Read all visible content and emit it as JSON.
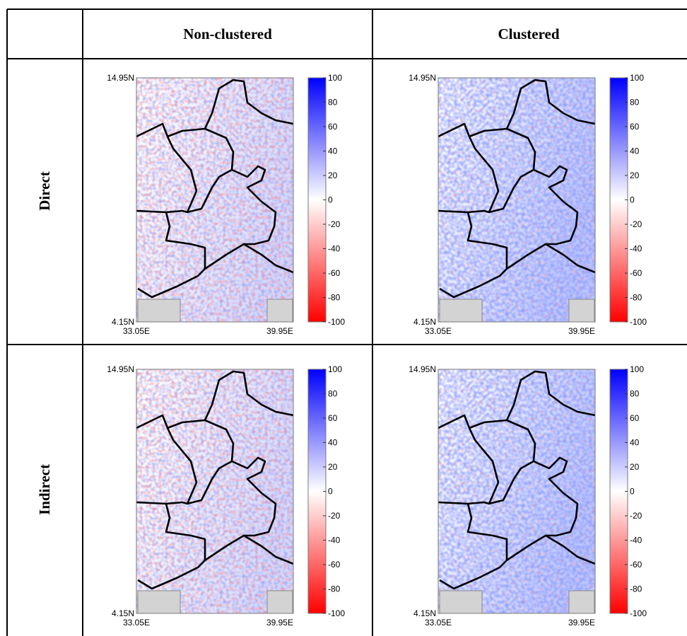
{
  "table": {
    "columns": [
      "Non-clustered",
      "Clustered"
    ],
    "rows": [
      {
        "label": "Direct",
        "panels": [
          {
            "ylabels": [
              "14.95N",
              "4.15N"
            ],
            "xlabels": [
              "33.05E",
              "39.95E"
            ],
            "colorbar": {
              "ticks": [
                100,
                80,
                60,
                40,
                20,
                0,
                -20,
                -40,
                -60,
                -80,
                -100
              ],
              "colors": [
                "#0000ff",
                "#ffffff",
                "#ff0000"
              ]
            }
          },
          {
            "ylabels": [
              "14.95N",
              "4.15N"
            ],
            "xlabels": [
              "33.05E",
              "39.95E"
            ],
            "colorbar": {
              "ticks": [
                100,
                80,
                60,
                40,
                20,
                0,
                -20,
                -40,
                -60,
                -80,
                -100
              ],
              "colors": [
                "#0000ff",
                "#ffffff",
                "#ff0000"
              ]
            }
          }
        ]
      },
      {
        "label": "Indirect",
        "panels": [
          {
            "ylabels": [
              "14.95N",
              "4.15N"
            ],
            "xlabels": [
              "33.05E",
              "39.95E"
            ],
            "colorbar": {
              "ticks": [
                100,
                80,
                60,
                40,
                20,
                0,
                -20,
                -40,
                -60,
                -80,
                -100
              ],
              "colors": [
                "#0000ff",
                "#ffffff",
                "#ff0000"
              ]
            }
          },
          {
            "ylabels": [
              "14.95N",
              "4.15N"
            ],
            "xlabels": [
              "33.05E",
              "39.95E"
            ],
            "colorbar": {
              "ticks": [
                100,
                80,
                60,
                40,
                20,
                0,
                -20,
                -40,
                -60,
                -80,
                -100
              ],
              "colors": [
                "#0000ff",
                "#ffffff",
                "#ff0000"
              ]
            }
          }
        ]
      }
    ]
  }
}
